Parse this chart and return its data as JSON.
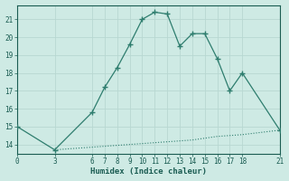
{
  "xlabel": "Humidex (Indice chaleur)",
  "line1_x": [
    0,
    3,
    6,
    7,
    8,
    9,
    10,
    11,
    12,
    13,
    14,
    15,
    16,
    17,
    18,
    21
  ],
  "line1_y": [
    15.0,
    13.7,
    15.8,
    17.2,
    18.3,
    19.6,
    21.0,
    21.4,
    21.3,
    19.5,
    20.2,
    20.2,
    18.8,
    17.0,
    18.0,
    14.8
  ],
  "line2_x": [
    3,
    6,
    7,
    8,
    9,
    10,
    11,
    12,
    13,
    14,
    15,
    16,
    17,
    18,
    21
  ],
  "line2_y": [
    13.7,
    13.85,
    13.9,
    13.95,
    14.0,
    14.05,
    14.1,
    14.15,
    14.2,
    14.25,
    14.35,
    14.45,
    14.5,
    14.55,
    14.8
  ],
  "line_color": "#2e7d6e",
  "bg_color": "#ceeae4",
  "grid_color": "#b8d8d2",
  "tick_color": "#1a5c52",
  "xlim": [
    0,
    21
  ],
  "ylim": [
    13.5,
    21.8
  ],
  "yticks": [
    14,
    15,
    16,
    17,
    18,
    19,
    20,
    21
  ],
  "xticks": [
    0,
    3,
    6,
    7,
    8,
    9,
    10,
    11,
    12,
    13,
    14,
    15,
    16,
    17,
    18,
    21
  ]
}
